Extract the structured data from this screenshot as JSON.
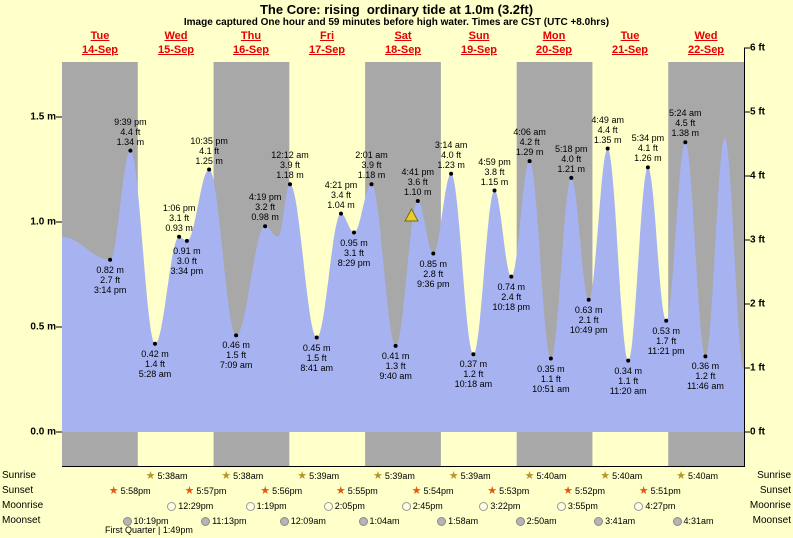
{
  "title": "The Core: rising  ordinary tide at 1.0m (3.2ft)",
  "subtitle": "Image captured One hour and 59 minutes before high water. Times are CST (UTC +8.0hrs)",
  "colors": {
    "background": "#ffffc9",
    "band_gray": "#a8a8a8",
    "tide_fill": "#a6b3f0",
    "header_red": "#e60000",
    "marker_black": "#000000",
    "triangle_fill": "#e8cc30"
  },
  "axes": {
    "left_unit": "m",
    "right_unit": "ft",
    "left_ticks": [
      "1.5 m",
      "1.0 m",
      "0.5 m",
      "0.0 m"
    ],
    "right_ticks": [
      "6 ft",
      "5 ft",
      "4 ft",
      "3 ft",
      "2 ft",
      "1 ft",
      "0 ft"
    ]
  },
  "days": [
    {
      "name": "Tue",
      "date": "14-Sep"
    },
    {
      "name": "Wed",
      "date": "15-Sep"
    },
    {
      "name": "Thu",
      "date": "16-Sep"
    },
    {
      "name": "Fri",
      "date": "17-Sep"
    },
    {
      "name": "Sat",
      "date": "18-Sep"
    },
    {
      "name": "Sun",
      "date": "19-Sep"
    },
    {
      "name": "Mon",
      "date": "20-Sep"
    },
    {
      "name": "Tue",
      "date": "21-Sep"
    },
    {
      "name": "Wed",
      "date": "22-Sep"
    }
  ],
  "chart_data": {
    "type": "area",
    "title": "The Core: rising  ordinary tide at 1.0m (3.2ft)",
    "x_unit": "hours from Tue 14-Sep 00:00",
    "x_range_hours": [
      0,
      216
    ],
    "y_unit": "m",
    "ylim": [
      0,
      1.9
    ],
    "grid": false,
    "tides": [
      {
        "t": 0.0,
        "m": 0.93,
        "edge": true
      },
      {
        "t": 15.23,
        "m": 0.82,
        "ft": "2.7",
        "time": "3:14 pm",
        "type": "low"
      },
      {
        "t": 21.65,
        "m": 1.34,
        "ft": "4.4",
        "time": "9:39 pm",
        "type": "high"
      },
      {
        "t": 29.47,
        "m": 0.42,
        "ft": "1.4",
        "time": "5:28 am",
        "type": "low"
      },
      {
        "t": 37.1,
        "m": 0.93,
        "ft": "3.1",
        "time": "1:06 pm",
        "type": "high"
      },
      {
        "t": 39.57,
        "m": 0.91,
        "ft": "3.0",
        "time": "3:34 pm",
        "type": "low"
      },
      {
        "t": 46.58,
        "m": 1.25,
        "ft": "4.1",
        "time": "10:35 pm",
        "type": "high"
      },
      {
        "t": 55.15,
        "m": 0.46,
        "ft": "1.5",
        "time": "7:09 am",
        "type": "low"
      },
      {
        "t": 64.32,
        "m": 0.98,
        "ft": "3.2",
        "time": "4:19 pm",
        "type": "high"
      },
      {
        "t": 68.4,
        "m": 0.93,
        "edge": true
      },
      {
        "t": 72.2,
        "m": 1.18,
        "ft": "3.9",
        "time": "12:12 am",
        "type": "high"
      },
      {
        "t": 80.68,
        "m": 0.45,
        "ft": "1.5",
        "time": "8:41 am",
        "type": "low"
      },
      {
        "t": 88.35,
        "m": 1.04,
        "ft": "3.4",
        "time": "4:21 pm",
        "type": "high"
      },
      {
        "t": 92.48,
        "m": 0.95,
        "ft": "3.1",
        "time": "8:29 pm",
        "type": "low"
      },
      {
        "t": 98.02,
        "m": 1.18,
        "ft": "3.9",
        "time": "2:01 am",
        "type": "high"
      },
      {
        "t": 105.67,
        "m": 0.41,
        "ft": "1.3",
        "time": "9:40 am",
        "type": "low"
      },
      {
        "t": 112.68,
        "m": 1.1,
        "ft": "3.6",
        "time": "4:41 pm",
        "type": "high"
      },
      {
        "t": 117.6,
        "m": 0.85,
        "ft": "2.8",
        "time": "9:36 pm",
        "type": "low"
      },
      {
        "t": 123.23,
        "m": 1.23,
        "ft": "4.0",
        "time": "3:14 am",
        "type": "high"
      },
      {
        "t": 130.3,
        "m": 0.37,
        "ft": "1.2",
        "time": "10:18 am",
        "type": "low"
      },
      {
        "t": 136.98,
        "m": 1.15,
        "ft": "3.8",
        "time": "4:59 pm",
        "type": "high"
      },
      {
        "t": 142.3,
        "m": 0.74,
        "ft": "2.4",
        "time": "10:18 pm",
        "type": "low"
      },
      {
        "t": 148.1,
        "m": 1.29,
        "ft": "4.2",
        "time": "4:06 am",
        "type": "high"
      },
      {
        "t": 154.85,
        "m": 0.35,
        "ft": "1.1",
        "time": "10:51 am",
        "type": "low"
      },
      {
        "t": 161.3,
        "m": 1.21,
        "ft": "4.0",
        "time": "5:18 pm",
        "type": "high"
      },
      {
        "t": 166.82,
        "m": 0.63,
        "ft": "2.1",
        "time": "10:49 pm",
        "type": "low"
      },
      {
        "t": 172.82,
        "m": 1.35,
        "ft": "4.4",
        "time": "4:49 am",
        "type": "high"
      },
      {
        "t": 179.33,
        "m": 0.34,
        "ft": "1.1",
        "time": "11:20 am",
        "type": "low"
      },
      {
        "t": 185.57,
        "m": 1.26,
        "ft": "4.1",
        "time": "5:34 pm",
        "type": "high"
      },
      {
        "t": 191.35,
        "m": 0.53,
        "ft": "1.7",
        "time": "11:21 pm",
        "type": "low"
      },
      {
        "t": 197.4,
        "m": 1.38,
        "ft": "4.5",
        "time": "5:24 am",
        "type": "high"
      },
      {
        "t": 203.77,
        "m": 0.36,
        "ft": "1.2",
        "time": "11:46 am",
        "type": "low"
      },
      {
        "t": 209.9,
        "m": 1.4,
        "edge": true
      },
      {
        "t": 216.0,
        "m": 0.3,
        "edge": true
      }
    ],
    "current_marker": {
      "t": 110.7,
      "m": 1.0,
      "symbol": "warning-triangle"
    }
  },
  "astro": {
    "rows": [
      {
        "label": "Sunrise",
        "icon": "sunrise-star",
        "items": [
          {
            "t": 29.63,
            "time": "5:38am"
          },
          {
            "t": 53.63,
            "time": "5:38am"
          },
          {
            "t": 77.65,
            "time": "5:39am"
          },
          {
            "t": 101.65,
            "time": "5:39am"
          },
          {
            "t": 125.65,
            "time": "5:39am"
          },
          {
            "t": 149.67,
            "time": "5:40am"
          },
          {
            "t": 173.67,
            "time": "5:40am"
          },
          {
            "t": 197.67,
            "time": "5:40am"
          }
        ]
      },
      {
        "label": "Sunset",
        "icon": "sunset-star",
        "items": [
          {
            "t": 17.97,
            "time": "5:58pm"
          },
          {
            "t": 41.95,
            "time": "5:57pm"
          },
          {
            "t": 65.93,
            "time": "5:56pm"
          },
          {
            "t": 89.92,
            "time": "5:55pm"
          },
          {
            "t": 113.9,
            "time": "5:54pm"
          },
          {
            "t": 137.88,
            "time": "5:53pm"
          },
          {
            "t": 161.87,
            "time": "5:52pm"
          },
          {
            "t": 185.85,
            "time": "5:51pm"
          }
        ]
      },
      {
        "label": "Moonrise",
        "icon": "moonrise-circle",
        "items": [
          {
            "t": 36.48,
            "time": "12:29pm"
          },
          {
            "t": 61.32,
            "time": "1:19pm"
          },
          {
            "t": 86.08,
            "time": "2:05pm"
          },
          {
            "t": 110.75,
            "time": "2:45pm"
          },
          {
            "t": 135.37,
            "time": "3:22pm"
          },
          {
            "t": 159.92,
            "time": "3:55pm"
          },
          {
            "t": 184.45,
            "time": "4:27pm"
          }
        ]
      },
      {
        "label": "Moonset",
        "icon": "moonset-circle",
        "items": [
          {
            "t": 22.32,
            "time": "10:19pm"
          },
          {
            "t": 47.22,
            "time": "11:13pm"
          },
          {
            "t": 72.15,
            "time": "12:09am"
          },
          {
            "t": 97.07,
            "time": "1:04am"
          },
          {
            "t": 121.97,
            "time": "1:58am"
          },
          {
            "t": 146.83,
            "time": "2:50am"
          },
          {
            "t": 171.68,
            "time": "3:41am"
          },
          {
            "t": 196.52,
            "time": "4:31am"
          }
        ]
      }
    ],
    "moon_phase": "First Quarter | 1:49pm"
  }
}
